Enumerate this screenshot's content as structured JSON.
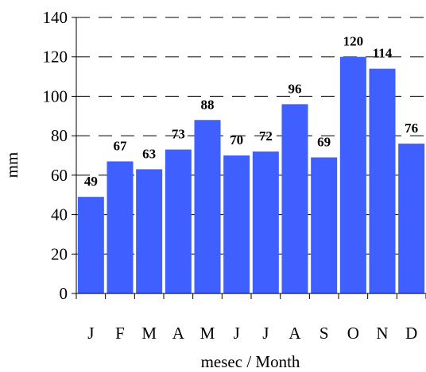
{
  "chart_data": {
    "type": "bar",
    "categories": [
      "J",
      "F",
      "M",
      "A",
      "M",
      "J",
      "J",
      "A",
      "S",
      "O",
      "N",
      "D"
    ],
    "values": [
      49,
      67,
      63,
      73,
      88,
      70,
      72,
      96,
      69,
      120,
      114,
      76
    ],
    "data_labels": [
      "49",
      "67",
      "63",
      "73",
      "88",
      "70",
      "72",
      "96",
      "69",
      "120",
      "114",
      "76"
    ],
    "xlabel": "mesec / Month",
    "ylabel": "mm",
    "ylim": [
      0,
      140
    ],
    "yticks": [
      0,
      20,
      40,
      60,
      80,
      100,
      120,
      140
    ],
    "grid": "horizontal dashed",
    "bar_color": "#3f5fff",
    "gridline_color": "#000000"
  }
}
